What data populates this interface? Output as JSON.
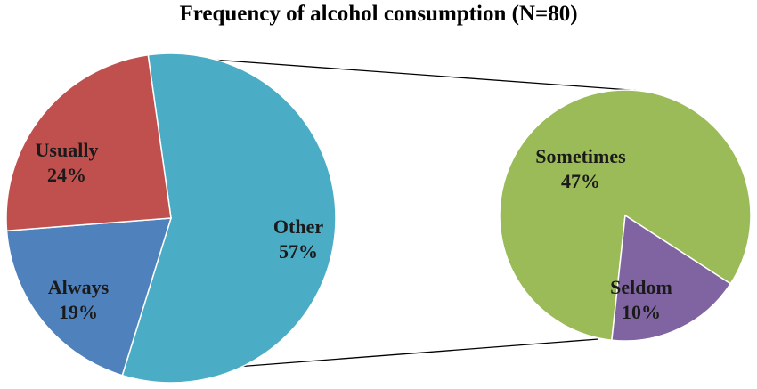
{
  "chart_data": {
    "type": "pie",
    "title": "Frequency of alcohol consumption (N=80)",
    "main_pie": {
      "slices": [
        {
          "label": "Other",
          "value": 57,
          "value_label": "57%",
          "color": "#4BACC6"
        },
        {
          "label": "Always",
          "value": 19,
          "value_label": "19%",
          "color": "#4F81BD"
        },
        {
          "label": "Usually",
          "value": 24,
          "value_label": "24%",
          "color": "#C0504D"
        }
      ]
    },
    "secondary_pie": {
      "slices": [
        {
          "label": "Sometimes",
          "value": 47,
          "value_label": "47%",
          "color": "#9BBB59"
        },
        {
          "label": "Seldom",
          "value": 10,
          "value_label": "10%",
          "color": "#8064A2"
        }
      ]
    },
    "legend": "none"
  }
}
